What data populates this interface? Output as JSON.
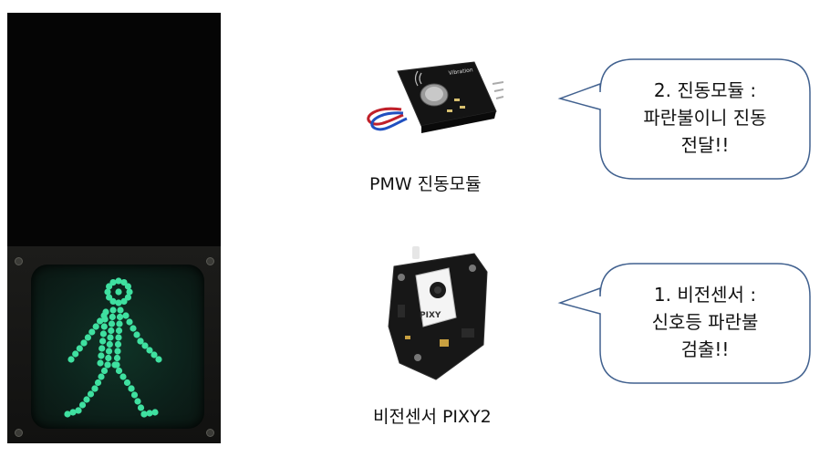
{
  "traffic_light": {
    "state": "green-walk",
    "led_color": "#3fe0a0"
  },
  "modules": {
    "vibration": {
      "caption": "PMW 진동모듈",
      "board_text": "Vibration"
    },
    "vision": {
      "caption": "비전센서 PIXY2",
      "board_text": "PIXY"
    }
  },
  "bubbles": {
    "vibration": {
      "line1": "2. 진동모듈 :",
      "line2": "파란불이니 진동",
      "line3": "전달!!"
    },
    "vision": {
      "line1": "1. 비전센서 :",
      "line2": "신호등 파란불",
      "line3": "검출!!"
    }
  },
  "colors": {
    "bubble_border": "#41618f",
    "signal_body": "#050505"
  }
}
